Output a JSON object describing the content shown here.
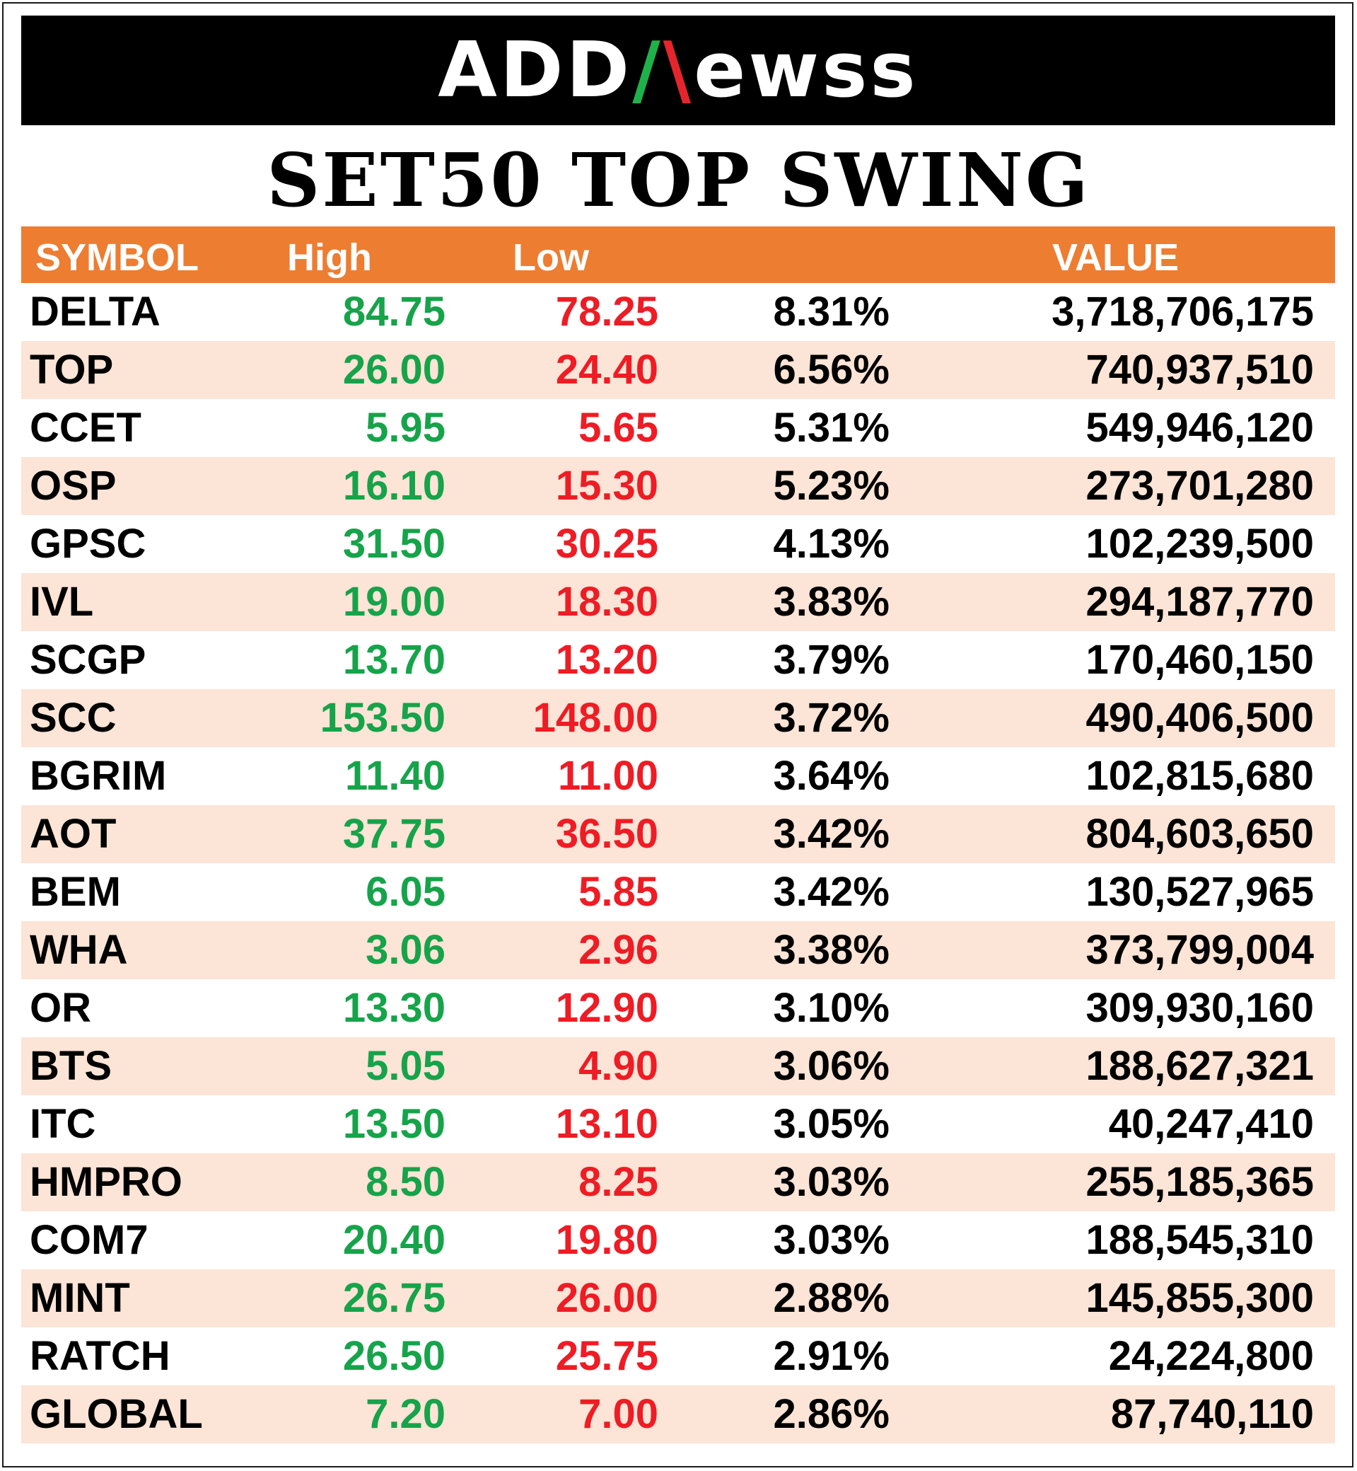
{
  "logo": {
    "part1": "ADD",
    "part2a": "/",
    "part2b": "\\",
    "part3": "ewss"
  },
  "title": "SET50 TOP SWING",
  "colors": {
    "header_bg": "#ed7d31",
    "alt_row_bg": "#fce4d6",
    "high": "#16a34a",
    "low": "#ee1c24"
  },
  "chart_data": {
    "type": "table",
    "title": "SET50 TOP SWING",
    "columns": [
      "SYMBOL",
      "High",
      "Low",
      "",
      "VALUE"
    ],
    "rows": [
      {
        "symbol": "DELTA",
        "high": "84.75",
        "low": "78.25",
        "pct": "8.31%",
        "value": "3,718,706,175"
      },
      {
        "symbol": "TOP",
        "high": "26.00",
        "low": "24.40",
        "pct": "6.56%",
        "value": "740,937,510"
      },
      {
        "symbol": "CCET",
        "high": "5.95",
        "low": "5.65",
        "pct": "5.31%",
        "value": "549,946,120"
      },
      {
        "symbol": "OSP",
        "high": "16.10",
        "low": "15.30",
        "pct": "5.23%",
        "value": "273,701,280"
      },
      {
        "symbol": "GPSC",
        "high": "31.50",
        "low": "30.25",
        "pct": "4.13%",
        "value": "102,239,500"
      },
      {
        "symbol": "IVL",
        "high": "19.00",
        "low": "18.30",
        "pct": "3.83%",
        "value": "294,187,770"
      },
      {
        "symbol": "SCGP",
        "high": "13.70",
        "low": "13.20",
        "pct": "3.79%",
        "value": "170,460,150"
      },
      {
        "symbol": "SCC",
        "high": "153.50",
        "low": "148.00",
        "pct": "3.72%",
        "value": "490,406,500"
      },
      {
        "symbol": "BGRIM",
        "high": "11.40",
        "low": "11.00",
        "pct": "3.64%",
        "value": "102,815,680"
      },
      {
        "symbol": "AOT",
        "high": "37.75",
        "low": "36.50",
        "pct": "3.42%",
        "value": "804,603,650"
      },
      {
        "symbol": "BEM",
        "high": "6.05",
        "low": "5.85",
        "pct": "3.42%",
        "value": "130,527,965"
      },
      {
        "symbol": "WHA",
        "high": "3.06",
        "low": "2.96",
        "pct": "3.38%",
        "value": "373,799,004"
      },
      {
        "symbol": "OR",
        "high": "13.30",
        "low": "12.90",
        "pct": "3.10%",
        "value": "309,930,160"
      },
      {
        "symbol": "BTS",
        "high": "5.05",
        "low": "4.90",
        "pct": "3.06%",
        "value": "188,627,321"
      },
      {
        "symbol": "ITC",
        "high": "13.50",
        "low": "13.10",
        "pct": "3.05%",
        "value": "40,247,410"
      },
      {
        "symbol": "HMPRO",
        "high": "8.50",
        "low": "8.25",
        "pct": "3.03%",
        "value": "255,185,365"
      },
      {
        "symbol": "COM7",
        "high": "20.40",
        "low": "19.80",
        "pct": "3.03%",
        "value": "188,545,310"
      },
      {
        "symbol": "MINT",
        "high": "26.75",
        "low": "26.00",
        "pct": "2.88%",
        "value": "145,855,300"
      },
      {
        "symbol": "RATCH",
        "high": "26.50",
        "low": "25.75",
        "pct": "2.91%",
        "value": "24,224,800"
      },
      {
        "symbol": "GLOBAL",
        "high": "7.20",
        "low": "7.00",
        "pct": "2.86%",
        "value": "87,740,110"
      }
    ]
  }
}
